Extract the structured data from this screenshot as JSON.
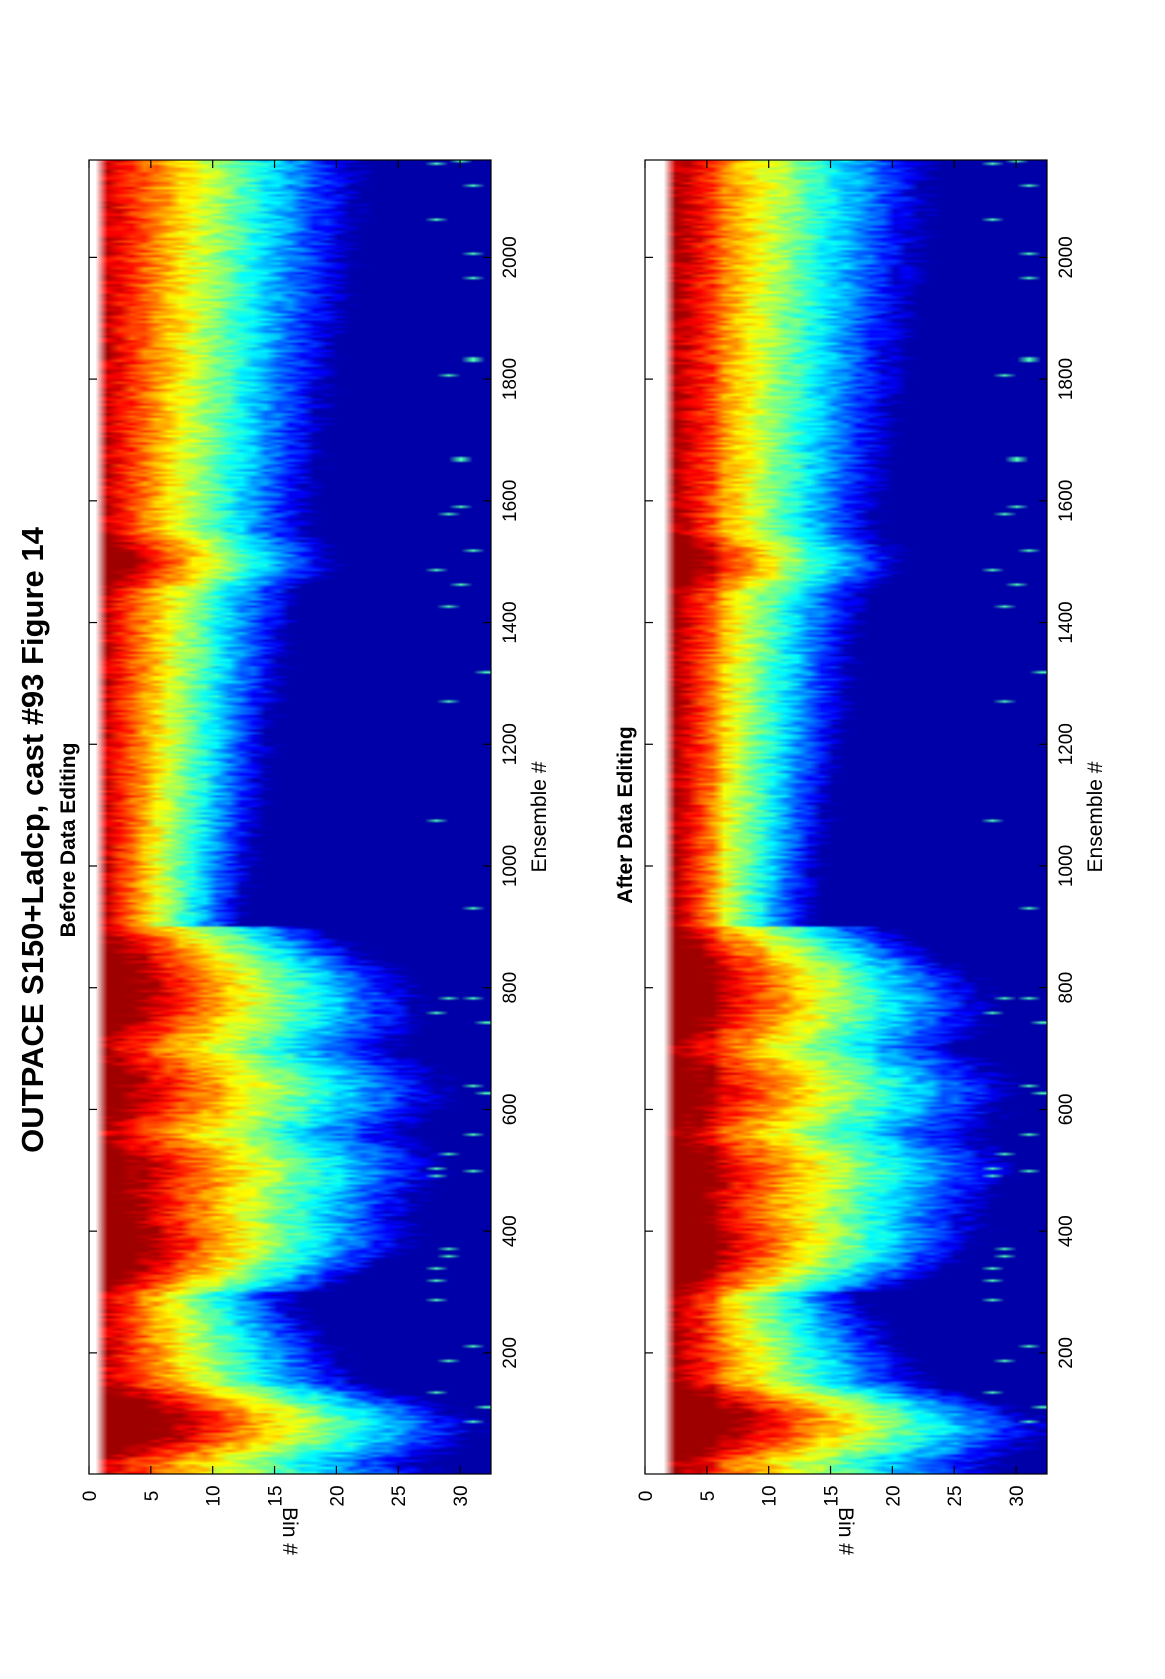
{
  "figure": {
    "title": "OUTPACE S150+Ladcp, cast #93  Figure 14",
    "orientation": "rotated 90 degrees counter-clockwise (landscape plot on portrait page)"
  },
  "colormap": "jet",
  "colors": {
    "jet_low": "#00008f",
    "jet_mid": "#7fff7f",
    "jet_high": "#800000"
  },
  "chart_data": [
    {
      "type": "heatmap",
      "title": "Before Data Editing",
      "xlabel": "Ensemble #",
      "ylabel": "Bin #",
      "xlim": [
        1,
        2160
      ],
      "ylim": [
        0,
        32.5
      ],
      "y_reversed": true,
      "xticks": [
        "200",
        "400",
        "600",
        "800",
        "1000",
        "1200",
        "1400",
        "1600",
        "1800",
        "2000"
      ],
      "yticks": [
        "0",
        "5",
        "10",
        "15",
        "20",
        "25",
        "30"
      ],
      "grid": false,
      "first_valid_bin": 1,
      "upcast_start_ensemble": 900,
      "bottom_ensembles": [
        300,
        900
      ],
      "missing_bin": 0
    },
    {
      "type": "heatmap",
      "title": "After Data Editing",
      "xlabel": "Ensemble #",
      "ylabel": "Bin #",
      "xlim": [
        1,
        2160
      ],
      "ylim": [
        0,
        32.5
      ],
      "y_reversed": true,
      "xticks": [
        "200",
        "400",
        "600",
        "800",
        "1000",
        "1200",
        "1400",
        "1600",
        "1800",
        "2000"
      ],
      "yticks": [
        "0",
        "5",
        "10",
        "15",
        "20",
        "25",
        "30"
      ],
      "grid": false,
      "first_valid_bin": 2,
      "upcast_start_ensemble": 900,
      "bottom_ensembles": [
        300,
        900
      ],
      "missing_bin": 0
    }
  ]
}
